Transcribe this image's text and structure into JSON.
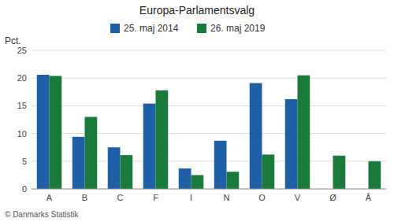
{
  "chart_data": {
    "type": "bar",
    "title": "Europa-Parlamentsvalg",
    "categories": [
      "A",
      "B",
      "C",
      "F",
      "I",
      "N",
      "O",
      "V",
      "Ø",
      "Å"
    ],
    "series": [
      {
        "name": "25. maj 2014",
        "color": "#1f5fa6",
        "values": [
          20.6,
          9.4,
          7.5,
          15.4,
          3.7,
          8.7,
          19.1,
          16.2,
          0.0,
          0.0
        ]
      },
      {
        "name": "26. maj 2019",
        "color": "#1a7a3c",
        "values": [
          20.4,
          13.0,
          6.1,
          17.8,
          2.5,
          3.1,
          6.2,
          20.5,
          6.0,
          5.0
        ]
      }
    ],
    "ylabel": "Pct.",
    "footer": "© Danmarks Statistik",
    "ylim": [
      0,
      25
    ],
    "yticks": [
      0,
      5,
      10,
      15,
      20,
      25
    ],
    "grid": true,
    "legend": "top"
  }
}
